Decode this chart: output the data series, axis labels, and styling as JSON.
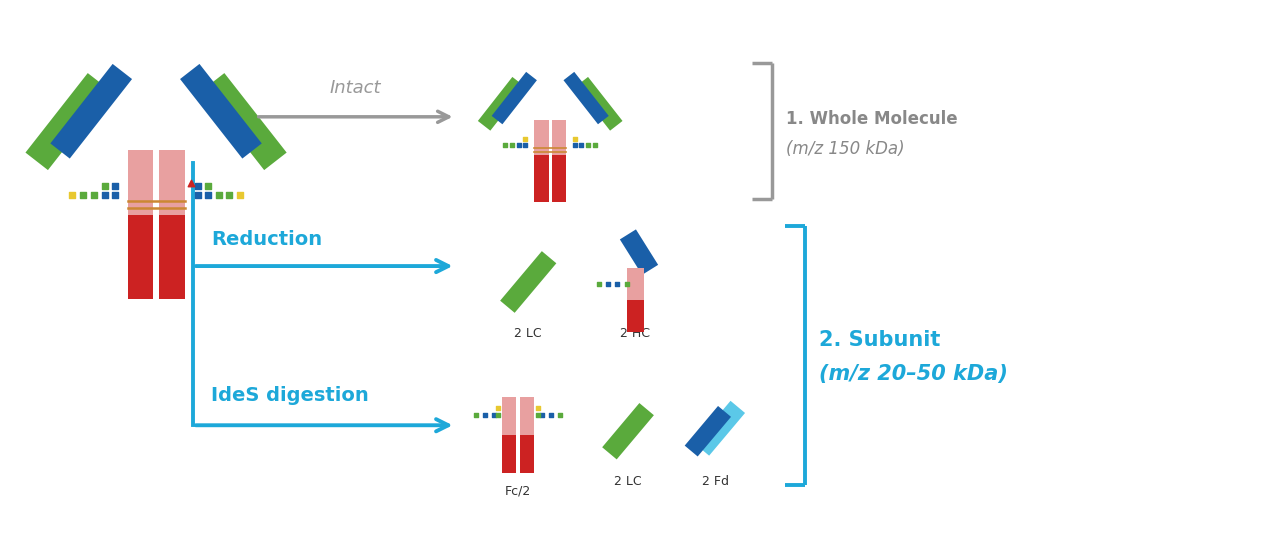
{
  "bg_color": "#ffffff",
  "blue_color": "#1da8d9",
  "dark_blue": "#1a5fa8",
  "green_color": "#5aaa3c",
  "red_color": "#cc2222",
  "pink_color": "#e8a0a0",
  "gray_color": "#999999",
  "text_blue": "#1da8d9",
  "text_gray": "#888888",
  "intact_text": "Intact",
  "reduction_text": "Reduction",
  "ides_text": "IdeS digestion",
  "label1_line1": "1. Whole Molecule",
  "label1_line2": "(m/z 150 kDa)",
  "label2_line1": "2. Subunit",
  "label2_line2": "(m/z 20–50 kDa)",
  "lc_label": "2 LC",
  "hc_label": "2 HC",
  "fc2_label": "Fc/2",
  "lc2_label": "2 LC",
  "fd_label": "2 Fd",
  "yellow_color": "#e8c830",
  "light_blue": "#5bc8e8",
  "orange_color": "#cc8833"
}
